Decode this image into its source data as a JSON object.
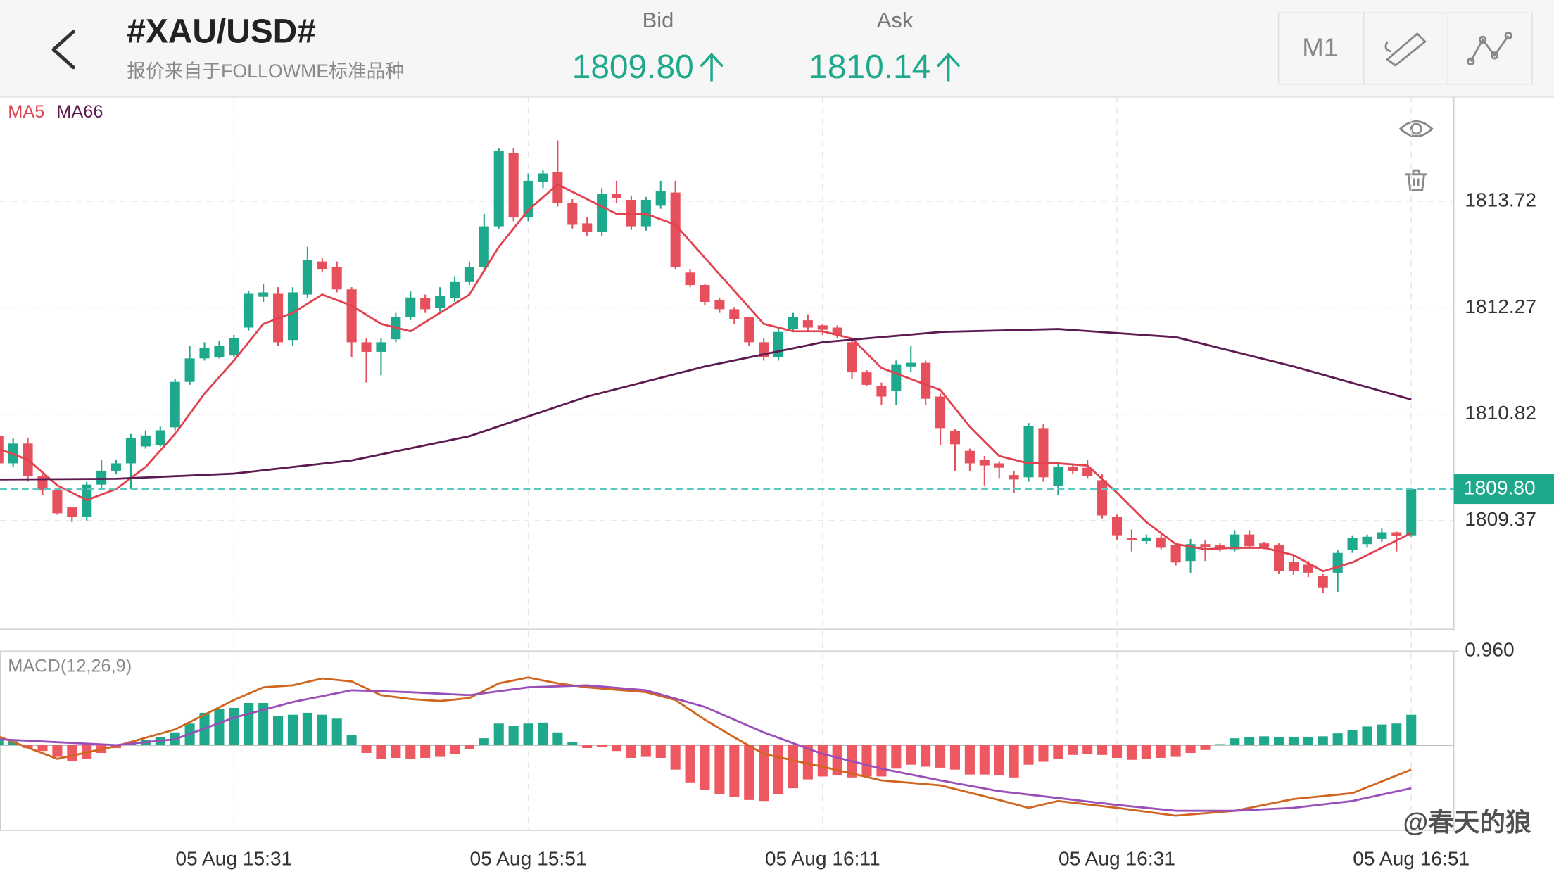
{
  "header": {
    "symbol": "#XAU/USD#",
    "source": "报价来自于FOLLOWME标准品种",
    "bid_label": "Bid",
    "bid": "1809.80",
    "ask_label": "Ask",
    "ask": "1810.14",
    "timeframe": "M1"
  },
  "watermark": "@春天的狼",
  "chart_data": [
    {
      "type": "candlestick",
      "categories": [
        null,
        null,
        null,
        null,
        null,
        null,
        null,
        null,
        null,
        null,
        null,
        null,
        null,
        null,
        null,
        null,
        "05 Aug 15:31",
        null,
        null,
        null,
        null,
        null,
        null,
        null,
        null,
        null,
        null,
        null,
        null,
        null,
        null,
        null,
        null,
        null,
        null,
        null,
        "05 Aug 15:51",
        null,
        null,
        null,
        null,
        null,
        null,
        null,
        null,
        null,
        null,
        null,
        null,
        null,
        null,
        null,
        null,
        null,
        null,
        null,
        "05 Aug 16:11",
        null,
        null,
        null,
        null,
        null,
        null,
        null,
        null,
        null,
        null,
        null,
        null,
        null,
        null,
        null,
        null,
        null,
        null,
        null,
        "05 Aug 16:31",
        null,
        null,
        null,
        null,
        null,
        null,
        null,
        null,
        null,
        null,
        null,
        null,
        null,
        null,
        null,
        null,
        null,
        null,
        null,
        "05 Aug 16:51"
      ],
      "open": [
        1810.52,
        1810.15,
        1810.42,
        1809.98,
        1809.78,
        1809.55,
        1809.42,
        1809.86,
        1810.05,
        1810.15,
        1810.38,
        1810.4,
        1810.64,
        1811.26,
        1811.58,
        1811.6,
        1811.62,
        1812.0,
        1812.42,
        1812.46,
        1811.83,
        1812.45,
        1812.9,
        1812.82,
        1812.52,
        1811.8,
        1811.67,
        1811.84,
        1812.14,
        1812.4,
        1812.27,
        1812.4,
        1812.62,
        1812.82,
        1813.38,
        1814.38,
        1813.5,
        1813.98,
        1814.12,
        1813.7,
        1813.42,
        1813.3,
        1813.82,
        1813.74,
        1813.38,
        1813.66,
        1813.84,
        1812.75,
        1812.58,
        1812.37,
        1812.25,
        1812.14,
        1811.8,
        1811.6,
        1811.98,
        1812.1,
        1812.03,
        1812.0,
        1811.8,
        1811.39,
        1811.2,
        1811.14,
        1811.47,
        1811.52,
        1811.06,
        1810.59,
        1810.32,
        1810.2,
        1810.15,
        1809.99,
        1809.96,
        1810.63,
        1809.84,
        1810.1,
        1810.09,
        1809.92,
        1809.42,
        1809.13,
        1809.09,
        1809.14,
        1809.04,
        1808.82,
        1809.05,
        1809.04,
        1808.98,
        1809.18,
        1809.06,
        1809.04,
        1808.81,
        1808.77,
        1808.62,
        1808.66,
        1808.97,
        1809.05,
        1809.12,
        1809.21,
        1809.17
      ],
      "high": [
        1810.55,
        1810.5,
        1810.5,
        1810.0,
        1809.8,
        1809.56,
        1809.9,
        1810.2,
        1810.2,
        1810.55,
        1810.6,
        1810.65,
        1811.3,
        1811.75,
        1811.8,
        1811.82,
        1811.9,
        1812.5,
        1812.6,
        1812.55,
        1812.55,
        1813.1,
        1812.95,
        1812.9,
        1812.55,
        1811.85,
        1811.85,
        1812.2,
        1812.5,
        1812.45,
        1812.55,
        1812.7,
        1812.9,
        1813.55,
        1814.45,
        1814.45,
        1814.1,
        1814.15,
        1814.55,
        1813.75,
        1813.5,
        1813.9,
        1814.0,
        1813.8,
        1813.78,
        1814.0,
        1814.0,
        1812.8,
        1812.6,
        1812.4,
        1812.28,
        1812.15,
        1811.85,
        1812.0,
        1812.2,
        1812.18,
        1812.05,
        1812.03,
        1811.85,
        1811.42,
        1811.25,
        1811.55,
        1811.75,
        1811.55,
        1811.1,
        1810.62,
        1810.35,
        1810.25,
        1810.18,
        1810.05,
        1810.7,
        1810.68,
        1810.15,
        1810.15,
        1810.2,
        1810.0,
        1809.45,
        1809.25,
        1809.18,
        1809.18,
        1809.06,
        1809.12,
        1809.1,
        1809.06,
        1809.24,
        1809.24,
        1809.08,
        1809.06,
        1808.9,
        1808.82,
        1808.65,
        1808.97,
        1809.17,
        1809.18,
        1809.26,
        1809.22,
        1809.82
      ],
      "low": [
        1810.1,
        1810.1,
        1809.9,
        1809.72,
        1809.45,
        1809.35,
        1809.37,
        1809.8,
        1810.0,
        1809.8,
        1810.35,
        1810.38,
        1810.6,
        1811.22,
        1811.55,
        1811.58,
        1811.6,
        1811.96,
        1812.35,
        1811.75,
        1811.75,
        1812.4,
        1812.75,
        1812.48,
        1811.6,
        1811.25,
        1811.35,
        1811.8,
        1812.1,
        1812.2,
        1812.22,
        1812.35,
        1812.58,
        1812.78,
        1813.35,
        1813.45,
        1813.45,
        1813.9,
        1813.65,
        1813.35,
        1813.25,
        1813.25,
        1813.7,
        1813.33,
        1813.32,
        1813.62,
        1812.8,
        1812.55,
        1812.3,
        1812.2,
        1812.05,
        1811.75,
        1811.55,
        1811.55,
        1811.95,
        1811.95,
        1811.9,
        1811.85,
        1811.3,
        1811.2,
        1810.95,
        1810.95,
        1811.4,
        1810.95,
        1810.4,
        1810.05,
        1810.05,
        1809.85,
        1809.95,
        1809.75,
        1809.9,
        1809.9,
        1809.72,
        1810.0,
        1809.95,
        1809.4,
        1809.1,
        1808.95,
        1809.05,
        1808.98,
        1808.76,
        1808.66,
        1808.82,
        1808.95,
        1808.95,
        1809.0,
        1808.98,
        1808.65,
        1808.63,
        1808.6,
        1808.38,
        1808.4,
        1808.93,
        1809.0,
        1809.08,
        1808.95,
        1809.15
      ],
      "close": [
        1810.15,
        1810.42,
        1809.98,
        1809.78,
        1809.47,
        1809.42,
        1809.86,
        1810.05,
        1810.15,
        1810.5,
        1810.53,
        1810.6,
        1811.26,
        1811.58,
        1811.72,
        1811.75,
        1811.86,
        1812.46,
        1812.48,
        1811.8,
        1812.48,
        1812.92,
        1812.8,
        1812.52,
        1811.8,
        1811.67,
        1811.8,
        1812.14,
        1812.41,
        1812.25,
        1812.43,
        1812.62,
        1812.82,
        1813.38,
        1814.41,
        1813.5,
        1814.0,
        1814.1,
        1813.7,
        1813.4,
        1813.3,
        1813.82,
        1813.76,
        1813.38,
        1813.74,
        1813.86,
        1812.82,
        1812.58,
        1812.35,
        1812.25,
        1812.12,
        1811.8,
        1811.6,
        1811.94,
        1812.14,
        1812.0,
        1811.97,
        1811.9,
        1811.39,
        1811.22,
        1811.06,
        1811.5,
        1811.52,
        1811.03,
        1810.63,
        1810.41,
        1810.15,
        1810.12,
        1810.09,
        1809.93,
        1810.66,
        1809.96,
        1810.1,
        1810.04,
        1809.98,
        1809.44,
        1809.17,
        1809.12,
        1809.14,
        1809.0,
        1808.8,
        1809.05,
        1809.01,
        1809.0,
        1809.18,
        1809.02,
        1809.01,
        1808.68,
        1808.68,
        1808.66,
        1808.46,
        1808.93,
        1809.13,
        1809.15,
        1809.21,
        1809.16,
        1809.8
      ],
      "up_color": "#1fa98c",
      "down_color": "#e6505c",
      "ylim": [
        1807.89,
        1815.14
      ],
      "yticks": [
        1813.72,
        1812.27,
        1810.82,
        1809.37
      ],
      "current_price": {
        "value": 1809.8,
        "label": "1809.80"
      },
      "grid": true,
      "series": [
        {
          "name": "MA5",
          "color": "#e0434f",
          "x": [
            0,
            2,
            4,
            6,
            8,
            10,
            12,
            14,
            16,
            18,
            20,
            22,
            24,
            26,
            28,
            30,
            32,
            34,
            36,
            38,
            40,
            42,
            44,
            46,
            48,
            50,
            52,
            54,
            56,
            58,
            60,
            62,
            64,
            66,
            68,
            70,
            72,
            74,
            76,
            78,
            80,
            82,
            84,
            86,
            88,
            90,
            92,
            94,
            96
          ],
          "values": [
            1810.35,
            1810.2,
            1809.85,
            1809.65,
            1809.8,
            1810.1,
            1810.55,
            1811.1,
            1811.55,
            1812.05,
            1812.2,
            1812.45,
            1812.3,
            1812.05,
            1811.95,
            1812.2,
            1812.45,
            1813.1,
            1813.6,
            1813.95,
            1813.75,
            1813.55,
            1813.55,
            1813.4,
            1812.95,
            1812.5,
            1812.05,
            1811.95,
            1811.95,
            1811.85,
            1811.45,
            1811.3,
            1811.15,
            1810.65,
            1810.25,
            1810.15,
            1810.15,
            1810.12,
            1809.75,
            1809.35,
            1809.05,
            1808.98,
            1809.0,
            1809.0,
            1808.9,
            1808.68,
            1808.8,
            1809.0,
            1809.2
          ]
        },
        {
          "name": "MA66",
          "color": "#5c1a50",
          "x": [
            0,
            8,
            16,
            24,
            32,
            40,
            48,
            56,
            64,
            72,
            80,
            88,
            96
          ],
          "values": [
            1809.93,
            1809.94,
            1810.01,
            1810.19,
            1810.52,
            1811.06,
            1811.47,
            1811.8,
            1811.94,
            1811.98,
            1811.87,
            1811.47,
            1811.02
          ]
        }
      ]
    },
    {
      "type": "macd",
      "title": "MACD(12,26,9)",
      "histogram": [
        0.06,
        0.04,
        -0.03,
        -0.06,
        -0.12,
        -0.16,
        -0.14,
        -0.08,
        -0.03,
        0.02,
        0.05,
        0.08,
        0.13,
        0.22,
        0.33,
        0.37,
        0.38,
        0.43,
        0.43,
        0.3,
        0.31,
        0.33,
        0.31,
        0.27,
        0.1,
        -0.08,
        -0.14,
        -0.13,
        -0.14,
        -0.13,
        -0.12,
        -0.09,
        -0.04,
        0.07,
        0.22,
        0.2,
        0.22,
        0.23,
        0.13,
        0.03,
        -0.03,
        -0.02,
        -0.06,
        -0.13,
        -0.12,
        -0.13,
        -0.25,
        -0.38,
        -0.46,
        -0.5,
        -0.53,
        -0.56,
        -0.57,
        -0.5,
        -0.44,
        -0.35,
        -0.32,
        -0.31,
        -0.33,
        -0.32,
        -0.32,
        -0.24,
        -0.2,
        -0.22,
        -0.23,
        -0.25,
        -0.3,
        -0.3,
        -0.31,
        -0.33,
        -0.2,
        -0.17,
        -0.14,
        -0.1,
        -0.09,
        -0.1,
        -0.13,
        -0.15,
        -0.14,
        -0.13,
        -0.12,
        -0.08,
        -0.05,
        0.01,
        0.07,
        0.08,
        0.09,
        0.08,
        0.08,
        0.08,
        0.09,
        0.12,
        0.15,
        0.19,
        0.21,
        0.22,
        0.31
      ],
      "up_color": "#1fa98c",
      "down_color": "#ee5860",
      "ylim": [
        -0.87,
        0.96
      ],
      "yticks": [
        {
          "value": 0.96,
          "label": "0.960"
        }
      ],
      "series": [
        {
          "color": "#d0651f",
          "x": [
            0,
            4,
            8,
            12,
            16,
            18,
            20,
            22,
            24,
            26,
            28,
            30,
            32,
            34,
            36,
            38,
            40,
            44,
            46,
            48,
            50,
            52,
            56,
            60,
            64,
            68,
            70,
            72,
            76,
            80,
            84,
            88,
            92,
            96
          ],
          "values": [
            0.09,
            -0.14,
            -0.01,
            0.16,
            0.46,
            0.59,
            0.61,
            0.68,
            0.65,
            0.51,
            0.47,
            0.45,
            0.48,
            0.63,
            0.69,
            0.63,
            0.59,
            0.54,
            0.46,
            0.26,
            0.08,
            -0.09,
            -0.22,
            -0.36,
            -0.41,
            -0.56,
            -0.64,
            -0.57,
            -0.64,
            -0.72,
            -0.67,
            -0.55,
            -0.49,
            -0.25
          ]
        },
        {
          "color": "#9a4fb8",
          "x": [
            0,
            4,
            8,
            12,
            16,
            20,
            24,
            28,
            32,
            36,
            40,
            44,
            48,
            52,
            56,
            60,
            64,
            68,
            72,
            76,
            80,
            84,
            88,
            92,
            96
          ],
          "values": [
            0.06,
            0.03,
            0.0,
            0.06,
            0.28,
            0.44,
            0.56,
            0.54,
            0.51,
            0.59,
            0.61,
            0.56,
            0.39,
            0.13,
            -0.09,
            -0.24,
            -0.36,
            -0.47,
            -0.54,
            -0.61,
            -0.67,
            -0.67,
            -0.64,
            -0.57,
            -0.44
          ]
        }
      ]
    }
  ]
}
